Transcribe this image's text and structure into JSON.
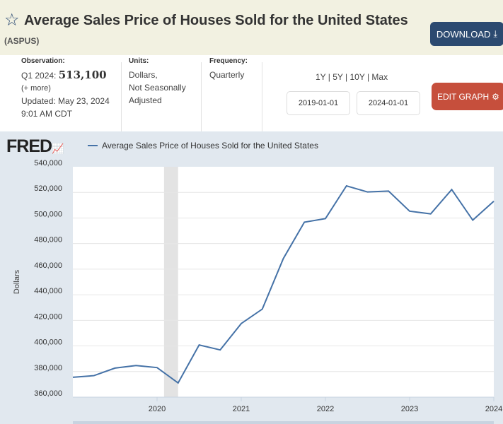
{
  "header": {
    "title": "Average Sales Price of Houses Sold for the United States",
    "series_id": "(ASPUS)",
    "download_label": "DOWNLOAD"
  },
  "meta": {
    "observation_label": "Observation:",
    "observation_period": "Q1 2024:",
    "observation_value": "513,100",
    "more": "(+ more)",
    "updated": "Updated: May 23, 2024",
    "updated_time": "9:01 AM CDT",
    "units_label": "Units:",
    "units": [
      "Dollars,",
      "Not Seasonally",
      "Adjusted"
    ],
    "frequency_label": "Frequency:",
    "frequency": "Quarterly"
  },
  "controls": {
    "ranges": "1Y | 5Y | 10Y | Max",
    "start_date": "2019-01-01",
    "end_date": "2024-01-01",
    "edit_label": "EDIT GRAPH"
  },
  "colors": {
    "line": "#4572a7",
    "recession": "#e3e3e3"
  },
  "chart_data": {
    "type": "line",
    "logo": "FRED",
    "title": "Average Sales Price of Houses Sold for the United States",
    "ylabel": "Dollars",
    "xlabel": "",
    "ylim": [
      360000,
      540000
    ],
    "xlim": [
      2019.0,
      2024.0
    ],
    "yticks": [
      "360,000",
      "380,000",
      "400,000",
      "420,000",
      "440,000",
      "460,000",
      "480,000",
      "500,000",
      "520,000",
      "540,000"
    ],
    "xticks": [
      "2020",
      "2021",
      "2022",
      "2023",
      "2024"
    ],
    "recession": [
      2020.083,
      2020.25
    ],
    "series": [
      {
        "name": "Average Sales Price of Houses Sold for the United States",
        "x": [
          2019.0,
          2019.25,
          2019.5,
          2019.75,
          2020.0,
          2020.25,
          2020.5,
          2020.75,
          2021.0,
          2021.25,
          2021.5,
          2021.75,
          2022.0,
          2022.25,
          2022.5,
          2022.75,
          2023.0,
          2023.25,
          2023.5,
          2023.75,
          2024.0
        ],
        "values": [
          375500,
          376800,
          382700,
          384700,
          383100,
          371100,
          400800,
          396900,
          417500,
          428800,
          468300,
          496700,
          499500,
          525100,
          520300,
          521000,
          505300,
          503200,
          522200,
          498300,
          513100
        ]
      }
    ]
  }
}
